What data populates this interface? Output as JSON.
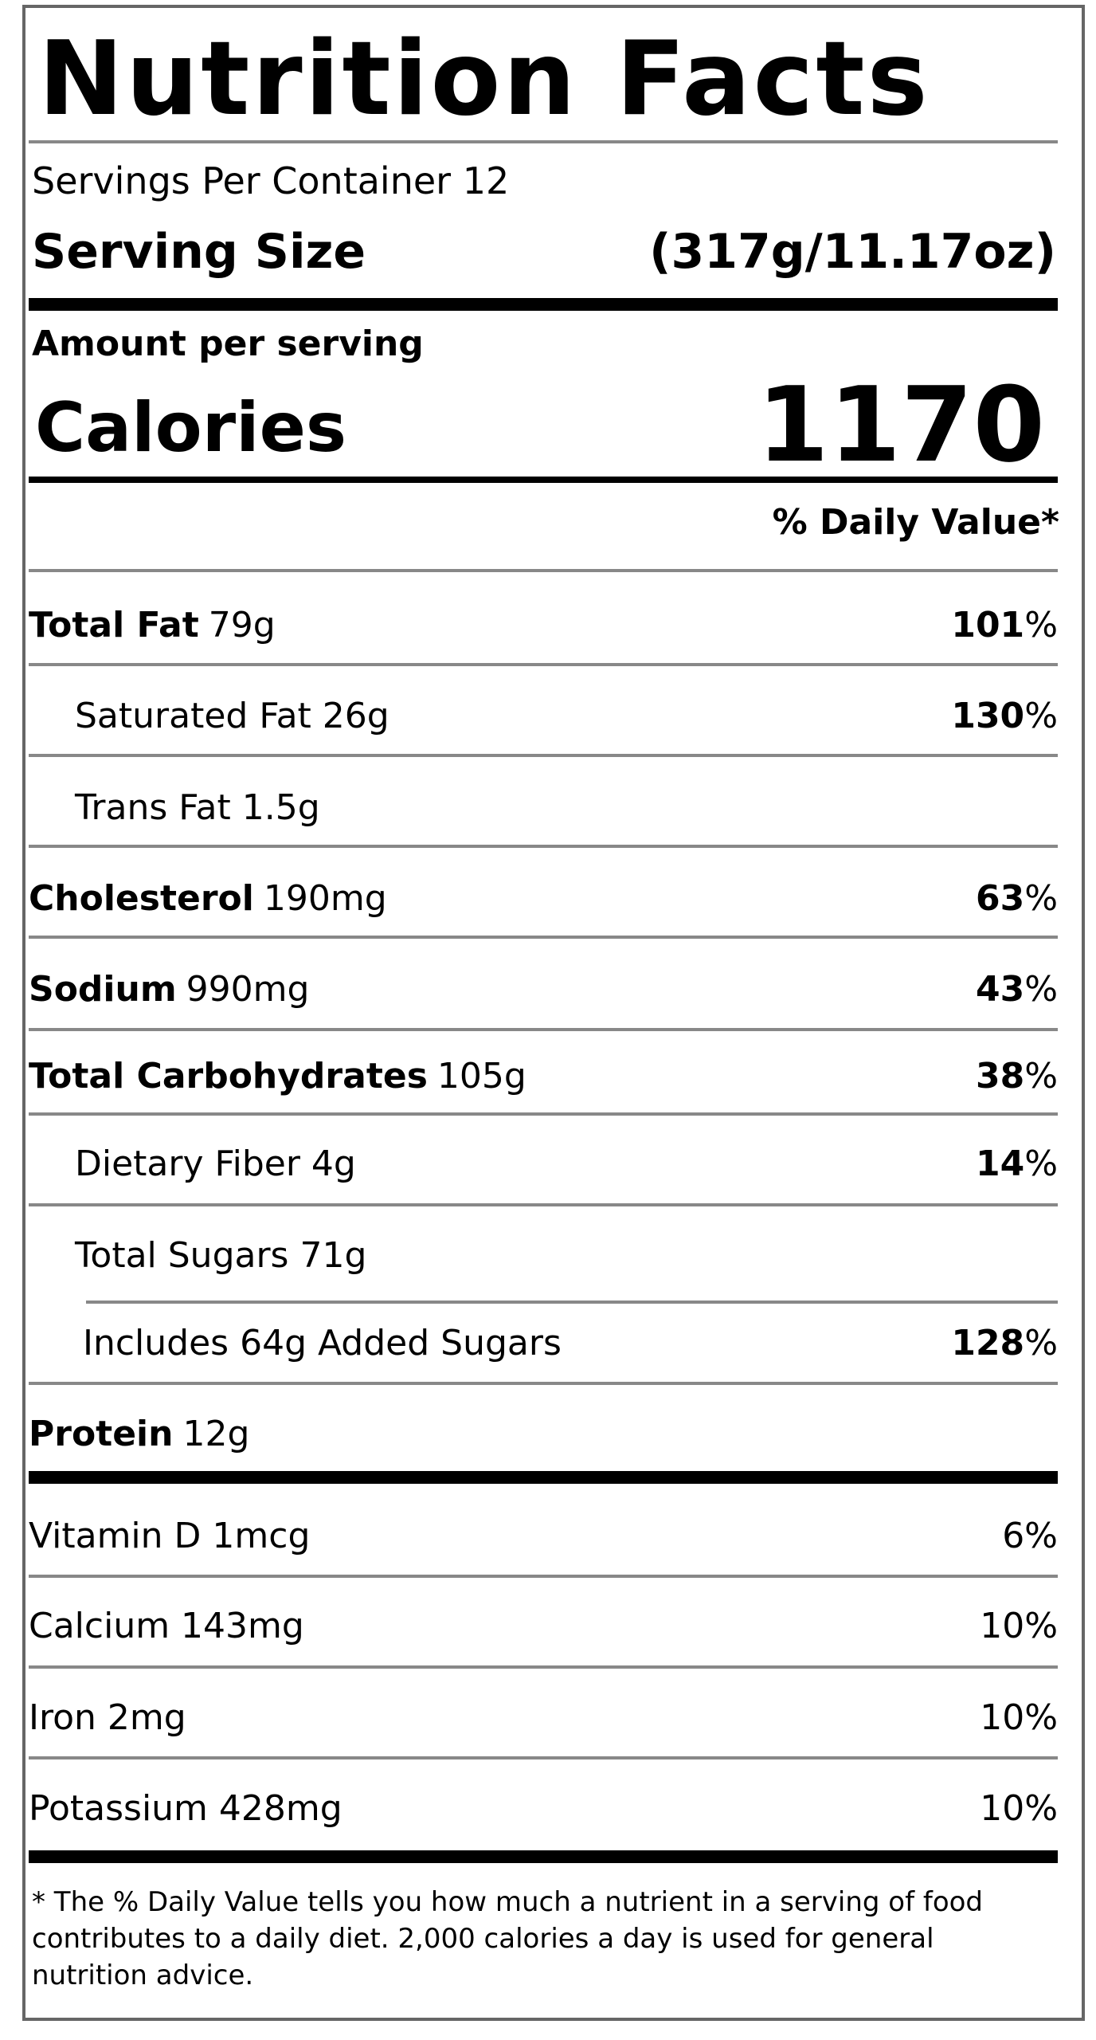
{
  "title": "Nutrition Facts",
  "servings_per_container": "Servings Per Container 12",
  "serving_size": {
    "label": "Serving Size",
    "value": "(317g/11.17oz)"
  },
  "amount_per_serving": "Amount per serving",
  "calories": {
    "label": "Calories",
    "value": "1170"
  },
  "daily_value_header": "% Daily Value*",
  "nutrients": [
    {
      "name": "Total Fat",
      "amount": "79g",
      "dv": "101",
      "pct": "%"
    },
    {
      "name": "Saturated Fat 26g",
      "amount": "",
      "dv": "130",
      "pct": "%"
    },
    {
      "name": "Trans Fat 1.5g",
      "amount": "",
      "dv": "",
      "pct": ""
    },
    {
      "name": "Cholesterol",
      "amount": "190mg",
      "dv": "63",
      "pct": "%"
    },
    {
      "name": "Sodium",
      "amount": "990mg",
      "dv": "43",
      "pct": "%"
    },
    {
      "name": "Total Carbohydrates",
      "amount": "105g",
      "dv": "38",
      "pct": "%"
    },
    {
      "name": "Dietary Fiber 4g",
      "amount": "",
      "dv": "14",
      "pct": "%"
    },
    {
      "name": "Total Sugars 71g",
      "amount": "",
      "dv": "",
      "pct": ""
    },
    {
      "name": "Includes 64g Added Sugars",
      "amount": "",
      "dv": "128",
      "pct": "%"
    },
    {
      "name": "Protein",
      "amount": "12g",
      "dv": "",
      "pct": ""
    }
  ],
  "vitamins": [
    {
      "name": "Vitamin D 1mcg",
      "dv": "6%"
    },
    {
      "name": "Calcium 143mg",
      "dv": "10%"
    },
    {
      "name": "Iron 2mg",
      "dv": "10%"
    },
    {
      "name": "Potassium 428mg",
      "dv": "10%"
    }
  ],
  "footnote": "* The % Daily Value tells you how much a nutrient in a serving of food contributes to a daily diet. 2,000 calories a day is used for general nutrition advice."
}
